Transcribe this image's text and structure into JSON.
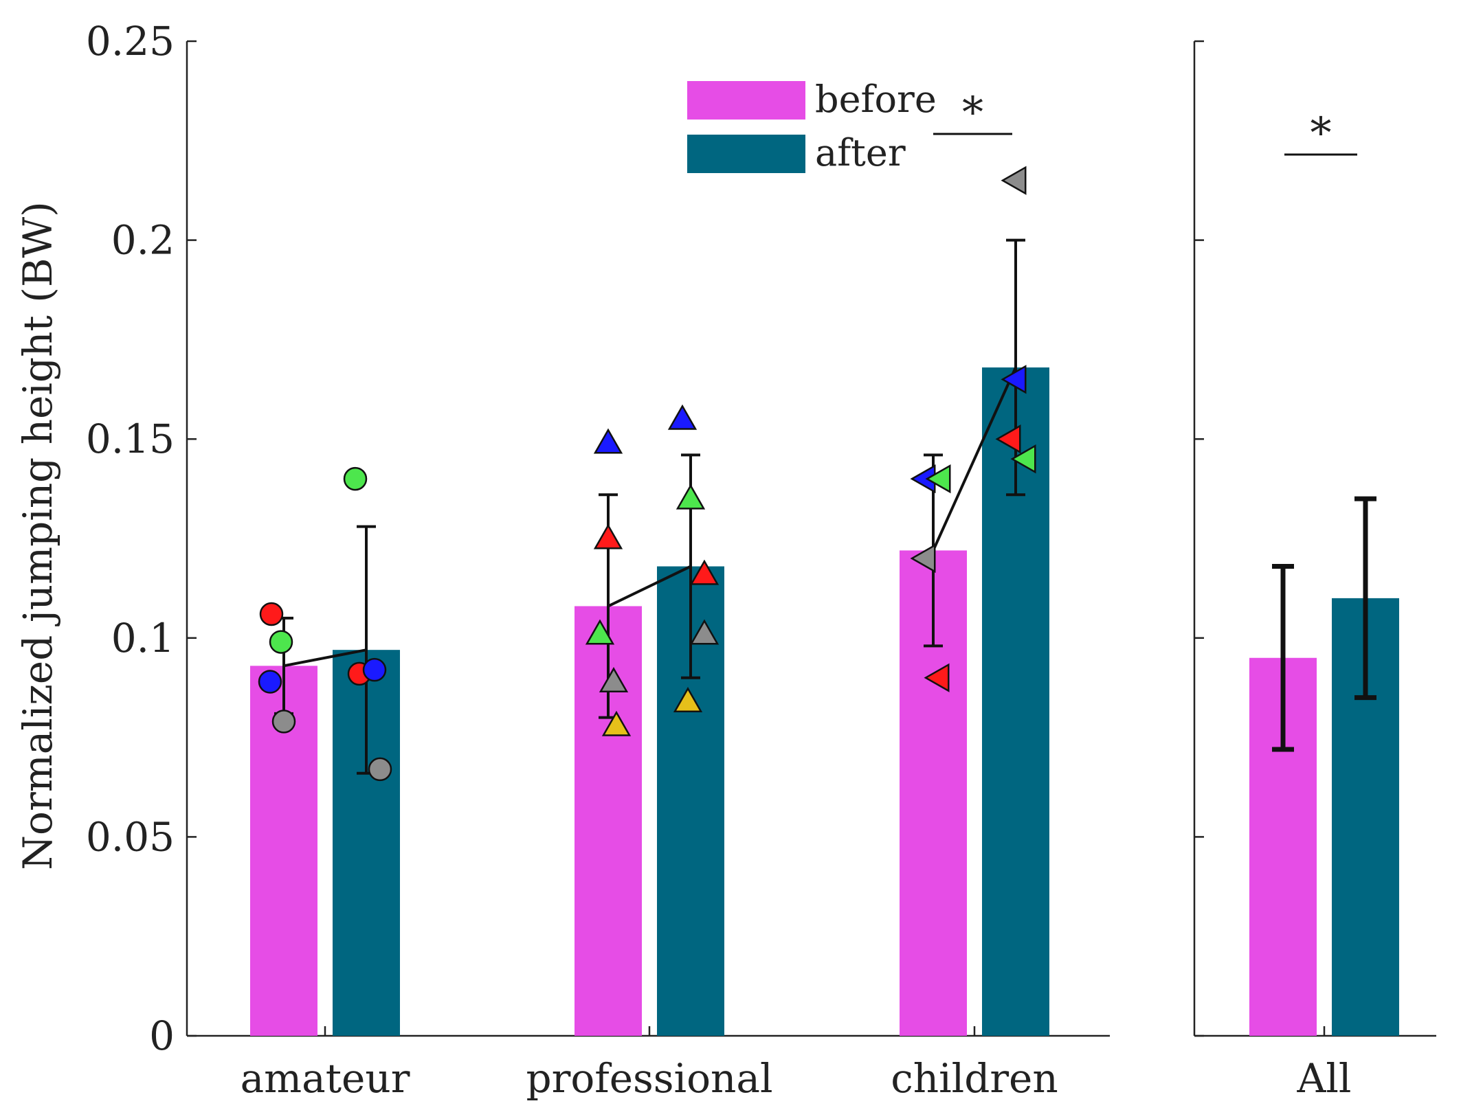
{
  "chart_data": [
    {
      "type": "bar",
      "panel": "groups",
      "ylabel": "Normalized jumping height (BW)",
      "ylim": [
        0,
        0.25
      ],
      "yticks": [
        0,
        0.05,
        0.1,
        0.15,
        0.2,
        0.25
      ],
      "ytick_labels": [
        "0",
        "0.05",
        "0.1",
        "0.15",
        "0.2",
        "0.25"
      ],
      "categories": [
        "amateur",
        "professional",
        "children"
      ],
      "series": [
        {
          "name": "before",
          "color": "#e64de6",
          "values": [
            0.093,
            0.108,
            0.122
          ],
          "error": [
            0.012,
            0.028,
            0.024
          ]
        },
        {
          "name": "after",
          "color": "#006680",
          "values": [
            0.097,
            0.118,
            0.168
          ],
          "error": [
            0.031,
            0.028,
            0.032
          ]
        }
      ],
      "individuals": [
        {
          "category": "amateur",
          "marker": "circle",
          "before": [
            {
              "v": 0.106,
              "color": "#ff1a1a"
            },
            {
              "v": 0.099,
              "color": "#4de64d"
            },
            {
              "v": 0.089,
              "color": "#1a1aff"
            },
            {
              "v": 0.079,
              "color": "#8c8c8c"
            }
          ],
          "after": [
            {
              "v": 0.14,
              "color": "#4de64d"
            },
            {
              "v": 0.091,
              "color": "#ff1a1a"
            },
            {
              "v": 0.092,
              "color": "#1a1aff"
            },
            {
              "v": 0.067,
              "color": "#8c8c8c"
            }
          ]
        },
        {
          "category": "professional",
          "marker": "triangle-up",
          "before": [
            {
              "v": 0.149,
              "color": "#1a1aff"
            },
            {
              "v": 0.125,
              "color": "#ff1a1a"
            },
            {
              "v": 0.101,
              "color": "#4de64d"
            },
            {
              "v": 0.089,
              "color": "#8c8c8c"
            },
            {
              "v": 0.078,
              "color": "#e6c01a"
            }
          ],
          "after": [
            {
              "v": 0.155,
              "color": "#1a1aff"
            },
            {
              "v": 0.135,
              "color": "#4de64d"
            },
            {
              "v": 0.116,
              "color": "#ff1a1a"
            },
            {
              "v": 0.101,
              "color": "#8c8c8c"
            },
            {
              "v": 0.084,
              "color": "#e6c01a"
            }
          ]
        },
        {
          "category": "children",
          "marker": "triangle-left",
          "before": [
            {
              "v": 0.14,
              "color": "#1a1aff"
            },
            {
              "v": 0.14,
              "color": "#4de64d"
            },
            {
              "v": 0.12,
              "color": "#8c8c8c"
            },
            {
              "v": 0.09,
              "color": "#ff1a1a"
            }
          ],
          "after": [
            {
              "v": 0.215,
              "color": "#8c8c8c"
            },
            {
              "v": 0.165,
              "color": "#1a1aff"
            },
            {
              "v": 0.15,
              "color": "#ff1a1a"
            },
            {
              "v": 0.145,
              "color": "#4de64d"
            }
          ]
        }
      ],
      "legend": {
        "entries": [
          "before",
          "after"
        ],
        "placement": "top-center"
      },
      "significance": [
        {
          "category": "children",
          "label": "*"
        }
      ]
    },
    {
      "type": "bar",
      "panel": "all",
      "ylim": [
        0,
        0.25
      ],
      "categories": [
        "All"
      ],
      "series": [
        {
          "name": "before",
          "color": "#e64de6",
          "values": [
            0.095
          ],
          "error": [
            0.023
          ]
        },
        {
          "name": "after",
          "color": "#006680",
          "values": [
            0.11
          ],
          "error": [
            0.025
          ]
        }
      ],
      "significance": [
        {
          "category": "All",
          "label": "*"
        }
      ]
    }
  ]
}
